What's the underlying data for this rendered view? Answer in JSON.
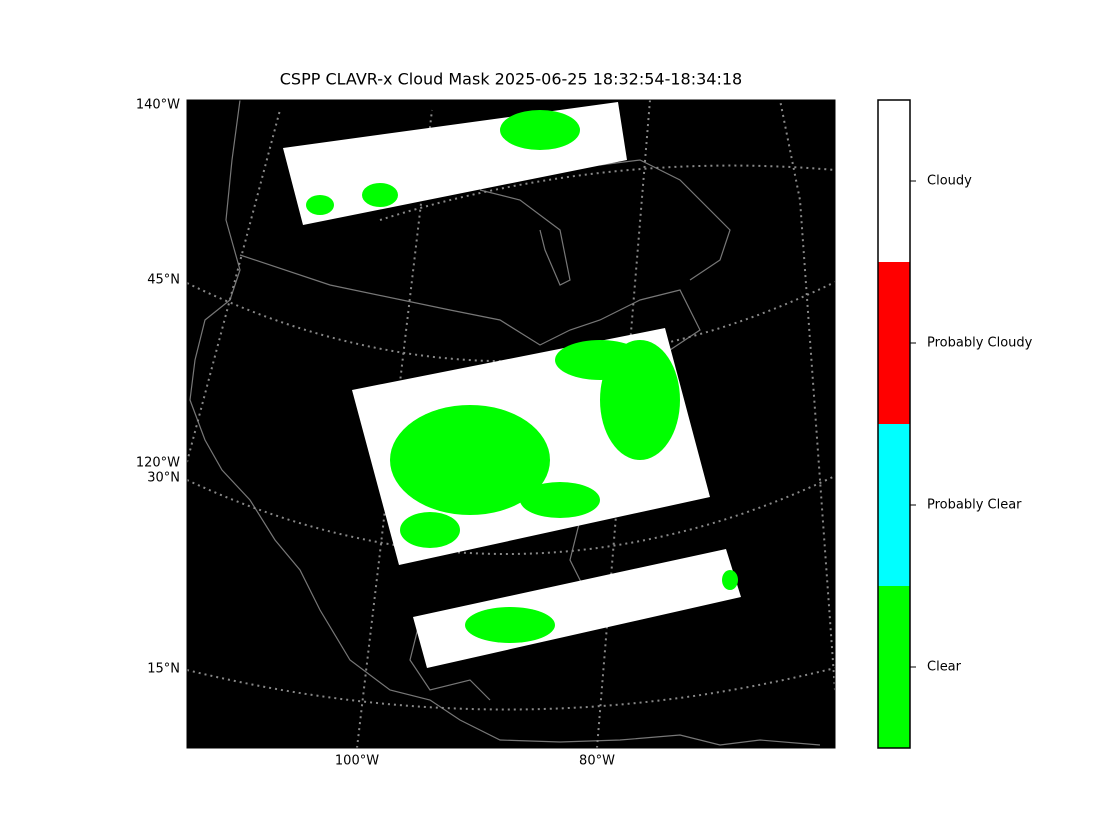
{
  "title": "CSPP CLAVR-x Cloud Mask 2025-06-25 18:32:54-18:34:18",
  "map": {
    "left_labels": [
      "140°W",
      "45°N",
      "120°W",
      "30°N",
      "15°N"
    ],
    "bottom_labels": [
      "100°W",
      "80°W"
    ]
  },
  "colorbar": {
    "classes": [
      {
        "label": "Cloudy",
        "color": "#ffffff"
      },
      {
        "label": "Probably Cloudy",
        "color": "#ff0000"
      },
      {
        "label": "Probably Clear",
        "color": "#00ffff"
      },
      {
        "label": "Clear",
        "color": "#00ff00"
      }
    ]
  }
}
